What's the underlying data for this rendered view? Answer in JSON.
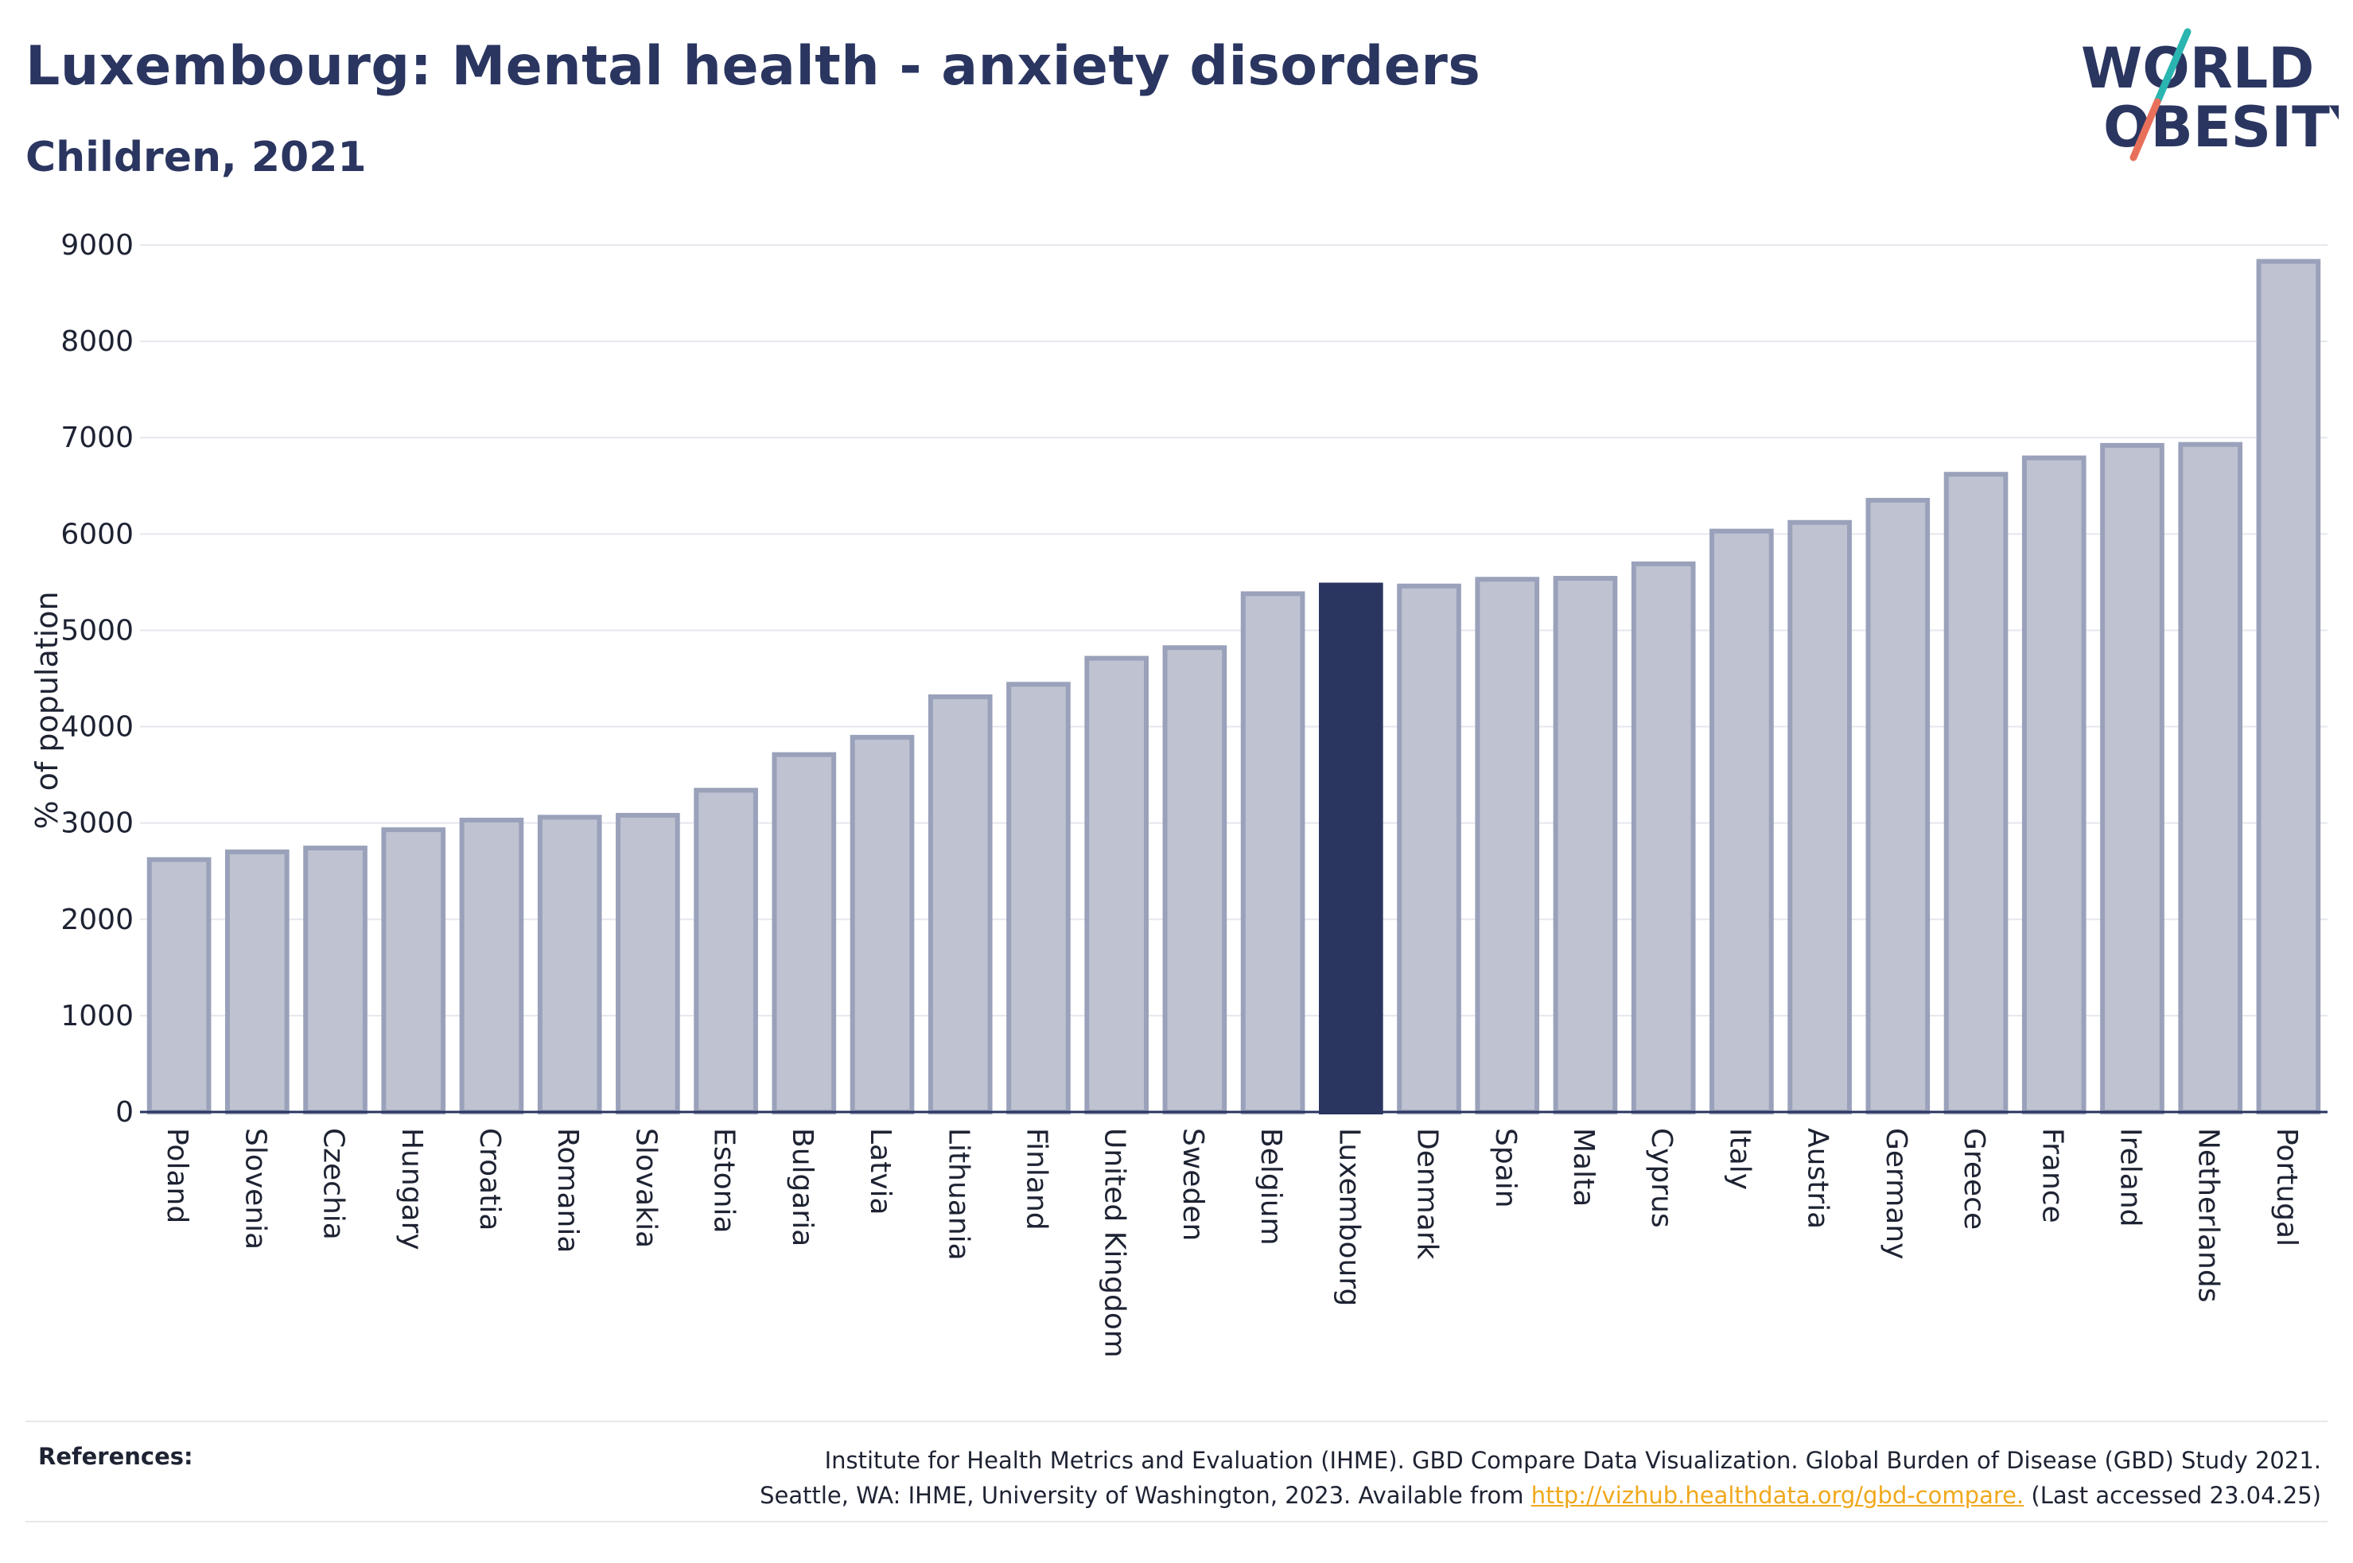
{
  "header": {
    "title": "Luxembourg: Mental health - anxiety disorders",
    "subtitle": "Children, 2021"
  },
  "logo": {
    "line1": "WORLD",
    "line2": "OBESITY",
    "colors": {
      "text": "#2a3560",
      "teal": "#2ab5b0",
      "coral": "#e8705a"
    }
  },
  "colors": {
    "bar_default": "#bfc3d1",
    "bar_stroke": "#9aa1ba",
    "bar_highlight": "#2a3560",
    "grid": "#e5e7ee",
    "axis": "#2a3560"
  },
  "chart_data": {
    "type": "bar",
    "ylabel": "% of population",
    "ylim": [
      0,
      9000
    ],
    "yticks": [
      0,
      1000,
      2000,
      3000,
      4000,
      5000,
      6000,
      7000,
      8000,
      9000
    ],
    "highlight": "Luxembourg",
    "grid": true,
    "categories": [
      "Poland",
      "Slovenia",
      "Czechia",
      "Hungary",
      "Croatia",
      "Romania",
      "Slovakia",
      "Estonia",
      "Bulgaria",
      "Latvia",
      "Lithuania",
      "Finland",
      "United Kingdom",
      "Sweden",
      "Belgium",
      "Luxembourg",
      "Denmark",
      "Spain",
      "Malta",
      "Cyprus",
      "Italy",
      "Austria",
      "Germany",
      "Greece",
      "France",
      "Ireland",
      "Netherlands",
      "Portugal"
    ],
    "values": [
      2620,
      2700,
      2740,
      2930,
      3030,
      3060,
      3080,
      3340,
      3710,
      3890,
      4310,
      4440,
      4710,
      4820,
      5380,
      5470,
      5460,
      5530,
      5540,
      5690,
      6030,
      6120,
      6350,
      6620,
      6790,
      6920,
      6930,
      8830
    ]
  },
  "references": {
    "label": "References:",
    "line1": "Institute for Health Metrics and Evaluation (IHME). GBD Compare Data Visualization. Global Burden of Disease (GBD) Study 2021.",
    "line2_prefix": "Seattle, WA: IHME, University of Washington, 2023. Available from ",
    "link": "http://vizhub.healthdata.org/gbd-compare.",
    "line2_suffix": " (Last accessed 23.04.25)"
  }
}
